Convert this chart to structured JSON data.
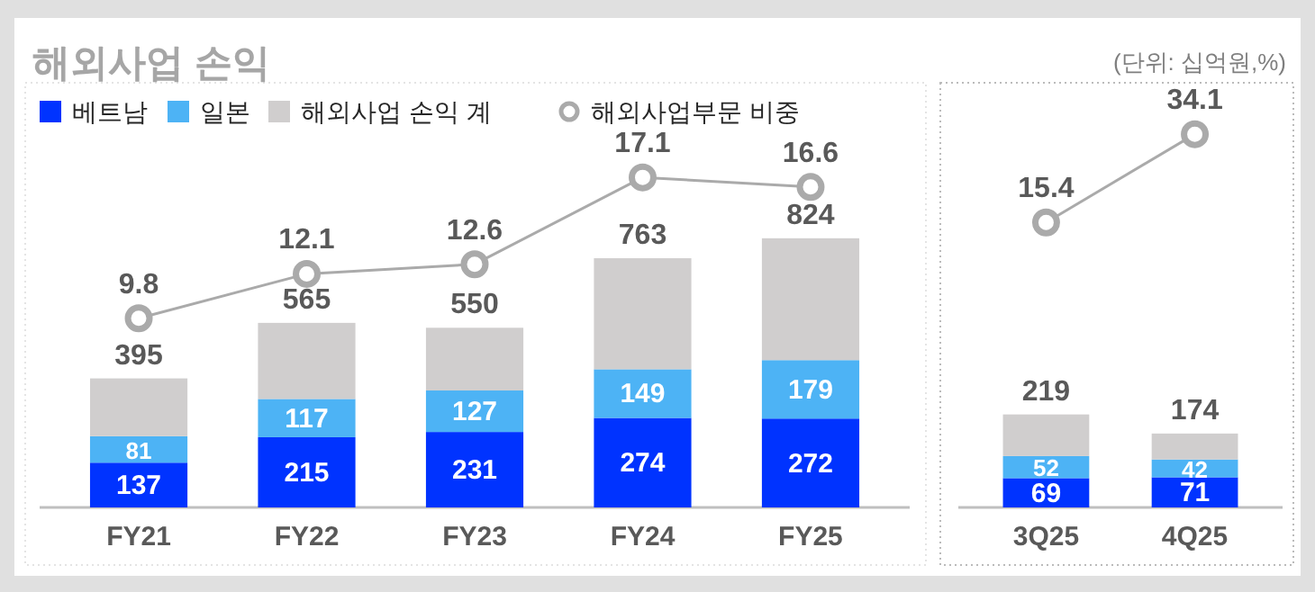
{
  "chart_data": [
    {
      "type": "bar",
      "title": "해외사업 손익",
      "categories": [
        "FY21",
        "FY22",
        "FY23",
        "FY24",
        "FY25"
      ],
      "stacked": true,
      "legend": "top left",
      "tick_labels": "x",
      "ylim": [
        0,
        1300
      ],
      "y2lim": [
        0,
        22
      ],
      "marker": "circle",
      "series": [
        {
          "name": "베트남",
          "color": "#0033ff",
          "values": [
            137,
            215,
            231,
            274,
            272
          ],
          "value_labels": [
            "137",
            "215",
            "231",
            "274",
            "272"
          ]
        },
        {
          "name": "일본",
          "color": "#4db3f5",
          "values": [
            81,
            117,
            127,
            149,
            179
          ],
          "value_labels": [
            "81",
            "117",
            "127",
            "149",
            "179"
          ]
        },
        {
          "name": "해외사업 손익 계",
          "color": "#d0cece",
          "values": [
            177,
            233,
            192,
            340,
            373
          ]
        },
        {
          "name": "해외사업부문 비중",
          "type": "line",
          "axis": "y2",
          "color": "#aaaaaa",
          "values": [
            9.8,
            12.1,
            12.6,
            17.1,
            16.6
          ],
          "value_labels": [
            "9.8",
            "12.1",
            "12.6",
            "17.1",
            "16.6"
          ]
        }
      ],
      "totals": [
        "395",
        "565",
        "550",
        "763",
        "824"
      ]
    },
    {
      "type": "bar",
      "annotations": [
        "(단위: 십억원,%)"
      ],
      "categories": [
        "3Q25",
        "4Q25"
      ],
      "stacked": true,
      "tick_labels": "x",
      "ylim": [
        0,
        1000
      ],
      "y2lim": [
        -45,
        45
      ],
      "marker": "circle",
      "series": [
        {
          "color": "#0033ff",
          "values": [
            69,
            71
          ],
          "value_labels": [
            "69",
            "71"
          ]
        },
        {
          "color": "#4db3f5",
          "values": [
            52,
            42
          ],
          "value_labels": [
            "52",
            "42"
          ]
        },
        {
          "color": "#d0cece",
          "values": [
            98,
            61
          ]
        },
        {
          "type": "line",
          "axis": "y2",
          "color": "#aaaaaa",
          "values": [
            15.4,
            34.1
          ],
          "value_labels": [
            "15.4",
            "34.1"
          ]
        }
      ],
      "totals": [
        "219",
        "174"
      ]
    }
  ]
}
